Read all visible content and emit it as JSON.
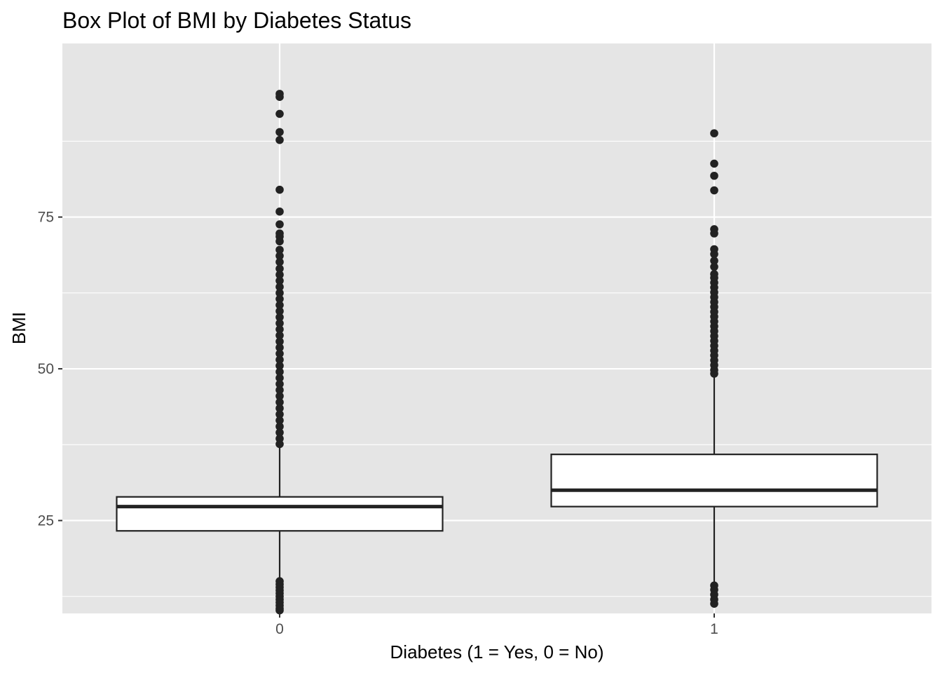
{
  "chart_data": {
    "type": "box",
    "title": "Box Plot of BMI by Diabetes Status",
    "xlabel": "Diabetes (1 = Yes, 0 = No)",
    "ylabel": "BMI",
    "categories": [
      "0",
      "1"
    ],
    "y_ticks": [
      "25",
      "50",
      "75"
    ],
    "y_tick_values": [
      25,
      50,
      75
    ],
    "ylim": [
      9.7,
      103.6
    ],
    "grid": true,
    "legend": "none",
    "colors": {
      "panel_background": "#e5e5e5",
      "grid_line": "#ffffff",
      "box_fill": "#ffffff",
      "box_stroke": "#222222",
      "outlier": "#222222"
    },
    "boxes": [
      {
        "category": "0",
        "q1": 23.3,
        "median": 27.3,
        "q3": 28.9,
        "whisker_low": 15.2,
        "whisker_high": 37.3,
        "outliers": [
          95.3,
          94.8,
          92.0,
          89.0,
          87.7,
          79.5,
          75.9,
          73.8,
          72.3,
          71.8,
          71.0,
          69.6,
          68.6,
          67.6,
          66.5,
          65.5,
          64.5,
          63.5,
          62.5,
          61.5,
          60.5,
          59.5,
          58.5,
          57.5,
          56.5,
          55.5,
          54.5,
          53.5,
          52.5,
          51.5,
          50.5,
          49.5,
          48.5,
          47.5,
          46.5,
          45.5,
          44.5,
          43.5,
          42.5,
          41.5,
          40.5,
          39.5,
          38.5,
          37.6,
          15.0,
          14.5,
          14.0,
          13.5,
          13.0,
          12.5,
          12.0,
          11.5,
          11.0,
          10.5,
          10.2
        ]
      },
      {
        "category": "1",
        "q1": 27.3,
        "median": 30.0,
        "q3": 35.9,
        "whisker_low": 14.5,
        "whisker_high": 48.9,
        "outliers": [
          88.8,
          83.8,
          81.8,
          79.4,
          73.0,
          72.3,
          69.7,
          68.9,
          67.8,
          66.8,
          65.6,
          65.0,
          64.2,
          63.4,
          62.6,
          61.8,
          61.0,
          60.2,
          59.4,
          58.6,
          57.8,
          57.0,
          56.2,
          55.4,
          54.6,
          53.8,
          53.0,
          52.2,
          51.4,
          50.6,
          49.8,
          49.2,
          14.3,
          13.6,
          12.8,
          12.0,
          11.3
        ]
      }
    ]
  }
}
